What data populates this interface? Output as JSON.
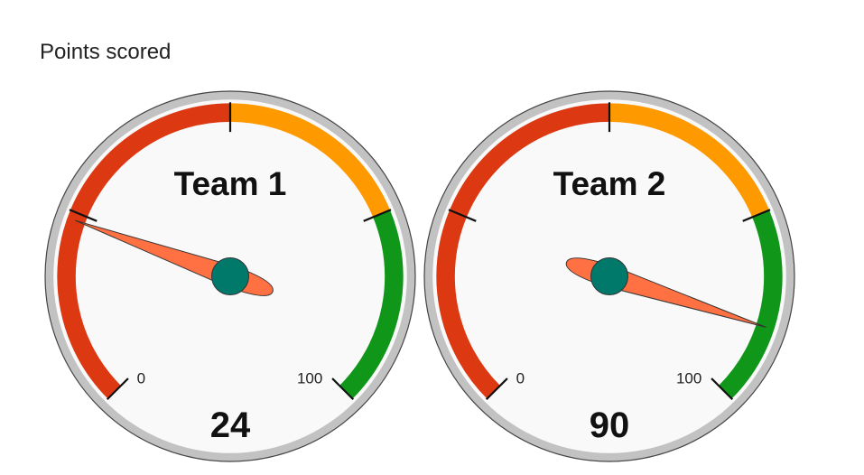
{
  "chart_data": {
    "type": "gauge",
    "title": "Points scored",
    "range": [
      0,
      100
    ],
    "bands": [
      {
        "from": 0,
        "to": 50,
        "color": "#dc3912"
      },
      {
        "from": 50,
        "to": 75,
        "color": "#ff9900"
      },
      {
        "from": 75,
        "to": 100,
        "color": "#109618"
      }
    ],
    "ticks": [
      0,
      100
    ],
    "gauges": [
      {
        "label": "Team 1",
        "value": 24
      },
      {
        "label": "Team 2",
        "value": 90
      }
    ],
    "colors": {
      "needle": "#ff7043",
      "hub": "#00796b",
      "face": "#f9f9f9",
      "rim": "#c2c2c2"
    }
  }
}
